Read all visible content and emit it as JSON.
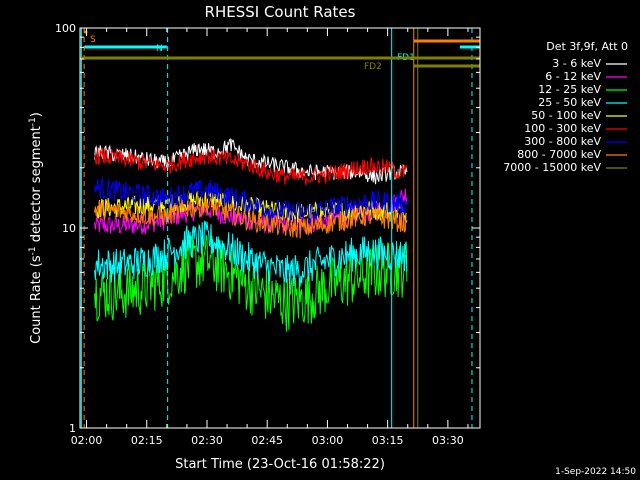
{
  "chart_data": {
    "type": "line",
    "title": "RHESSI Count Rates",
    "xlabel": "Start Time (23-Oct-16 01:58:22)",
    "ylabel": "Count Rate (s",
    "ylabel_sup1": "-1",
    "ylabel_mid": " detector segment",
    "ylabel_sup2": "-1",
    "ylabel_end": ")",
    "y_scale": "log",
    "ylim": [
      1,
      100
    ],
    "y_ticks": [
      1,
      10,
      100
    ],
    "y_tick_labels": [
      "1",
      "10",
      "100"
    ],
    "xlim_minutes_after_0200": [
      -1.63,
      98
    ],
    "x_ticks_minutes_after_0200": [
      0,
      15,
      30,
      45,
      60,
      75,
      90
    ],
    "x_tick_labels": [
      "02:00",
      "02:15",
      "02:30",
      "02:45",
      "03:00",
      "03:15",
      "03:30"
    ],
    "legend_placement": "right",
    "legend_header": "Det 3f,9f, Att 0",
    "footer_date": "1-Sep-2022 14:50",
    "series": [
      {
        "name": "3 - 6 keV",
        "color": "#ffffff",
        "x": [
          2,
          10,
          15,
          20,
          24,
          28,
          32,
          36,
          40,
          45,
          50,
          55,
          60,
          64,
          68,
          72,
          76,
          80
        ],
        "y": [
          24,
          23,
          22,
          21,
          23,
          25,
          24,
          26,
          22,
          21,
          20,
          19,
          19,
          19,
          19,
          18,
          19,
          19
        ]
      },
      {
        "name": "6 - 12 keV",
        "color": "#ff00ff",
        "x": [
          2,
          10,
          15,
          20,
          25,
          30,
          35,
          40,
          45,
          50,
          55,
          60,
          65,
          70,
          75,
          78,
          80
        ],
        "y": [
          10.3,
          10.3,
          10.5,
          11,
          12,
          12.5,
          11.5,
          11,
          10.5,
          10.3,
          10.5,
          11,
          11.5,
          12,
          12.5,
          14,
          15
        ]
      },
      {
        "name": "12 - 25 keV",
        "color": "#00ff00",
        "x": [
          2,
          8,
          14,
          20,
          25,
          30,
          35,
          40,
          45,
          50,
          55,
          60,
          65,
          70,
          75,
          80
        ],
        "y": [
          4.8,
          4.7,
          5,
          5.6,
          6.6,
          6.9,
          6.1,
          5.2,
          4.6,
          4.2,
          4.5,
          5.1,
          5.5,
          5.9,
          6.2,
          6.2
        ]
      },
      {
        "name": "25 - 50 keV",
        "color": "#00ffff",
        "x": [
          2,
          8,
          14,
          20,
          25,
          30,
          35,
          40,
          45,
          50,
          55,
          60,
          65,
          70,
          75,
          80
        ],
        "y": [
          6.6,
          6.5,
          6.8,
          7.4,
          8.5,
          8.9,
          8,
          7,
          6.4,
          6,
          6.3,
          6.9,
          7.3,
          7.6,
          7.4,
          7.3
        ]
      },
      {
        "name": "50 - 100 keV",
        "color": "#ffff00",
        "x": [
          2,
          10,
          20,
          30,
          40,
          50,
          60,
          70,
          80
        ],
        "y": [
          12.5,
          12.8,
          13.2,
          14,
          12.8,
          11.8,
          12,
          12.4,
          12
        ]
      },
      {
        "name": "100 - 300 keV",
        "color": "#ff0000",
        "x": [
          2,
          10,
          15,
          20,
          25,
          30,
          35,
          40,
          45,
          50,
          55,
          60,
          65,
          70,
          75,
          78,
          80
        ],
        "y": [
          23,
          22,
          21,
          20.5,
          22,
          23,
          22,
          21,
          19,
          18,
          18,
          18.5,
          19.5,
          20.5,
          20,
          19,
          19
        ]
      },
      {
        "name": "300 - 800 keV",
        "color": "#0000ff",
        "x": [
          2,
          10,
          15,
          20,
          25,
          30,
          35,
          40,
          45,
          50,
          55,
          60,
          65,
          70,
          75,
          80
        ],
        "y": [
          16,
          15,
          14.5,
          14,
          15,
          15.5,
          14.5,
          13.5,
          12.5,
          12,
          12,
          12.5,
          13,
          13.5,
          13.5,
          13
        ]
      },
      {
        "name": "800 - 7000 keV",
        "color": "#ff7f00",
        "x": [
          2,
          10,
          15,
          20,
          25,
          30,
          35,
          40,
          45,
          50,
          55,
          60,
          65,
          70,
          75,
          80
        ],
        "y": [
          12.5,
          12,
          11.5,
          11.5,
          12.5,
          13,
          12,
          11,
          10.5,
          10,
          10,
          10.5,
          11,
          11.5,
          11,
          10.5
        ]
      },
      {
        "name": "7000 - 15000 keV",
        "color": "#808000",
        "x": [],
        "y": []
      }
    ],
    "flag_bars": [
      {
        "label": "S",
        "color": "#ff7f00",
        "start": -0.5,
        "end": 0.2,
        "level": 1
      },
      {
        "label": "N",
        "color": "#00ffff",
        "start": -0.5,
        "end": 20,
        "level": 2
      },
      {
        "label": "FD1",
        "color": "#00ffff",
        "start": 93,
        "end": 98,
        "level": 2
      },
      {
        "label": "FD2",
        "color": "#808000",
        "start": -1.63,
        "end": 98,
        "level": 4
      }
    ],
    "vertical_markers": [
      {
        "x": -0.6,
        "color": "#ff7f00",
        "style": "dashed"
      },
      {
        "x": -1.3,
        "color": "#00ffff",
        "style": "solid"
      },
      {
        "x": 20.2,
        "color": "#00ffff",
        "style": "dashed"
      },
      {
        "x": 76,
        "color": "#00ffff",
        "style": "solid"
      },
      {
        "x": 81.5,
        "color": "#ff7f00",
        "style": "solid"
      },
      {
        "x": 96,
        "color": "#00ffff",
        "style": "dashed"
      }
    ]
  }
}
